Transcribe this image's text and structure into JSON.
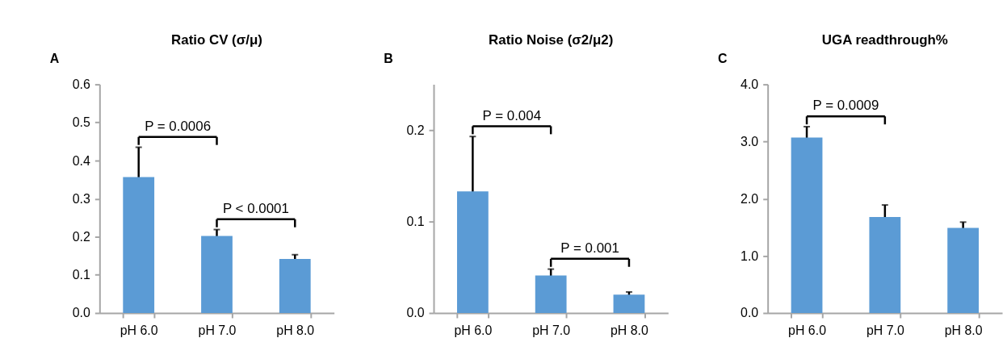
{
  "chart_data": [
    {
      "type": "bar",
      "title": "Ratio CV (σ/μ)",
      "categories": [
        "pH 6.0",
        "pH 7.0",
        "pH 8.0"
      ],
      "values": [
        0.357,
        0.202,
        0.142
      ],
      "errors": [
        0.078,
        0.017,
        0.011
      ],
      "color": "#5b9bd5",
      "ylim": [
        0,
        0.6
      ],
      "yticks": [
        {
          "value": 0,
          "label": "0.0"
        },
        0.1,
        0.2,
        0.3,
        0.4,
        0.5,
        0.6
      ],
      "grid": false,
      "annotations": [
        "A",
        "P = 0.0006",
        "P < 0.0001"
      ]
    },
    {
      "type": "bar",
      "title": "Ratio Noise (σ2/μ2)",
      "categories": [
        "pH 6.0",
        "pH 7.0",
        "pH 8.0"
      ],
      "values": [
        0.133,
        0.041,
        0.02
      ],
      "errors": [
        0.06,
        0.007,
        0.003
      ],
      "color": "#5b9bd5",
      "ylim": [
        0,
        0.25
      ],
      "yticks": [
        {
          "value": 0,
          "label": "0.0"
        },
        0.1,
        0.2
      ],
      "grid": false,
      "annotations": [
        "B",
        "P = 0.004",
        "P = 0.001"
      ]
    },
    {
      "type": "bar",
      "title": "UGA readthrough%",
      "categories": [
        "pH 6.0",
        "pH 7.0",
        "pH 8.0"
      ],
      "values": [
        3.07,
        1.68,
        1.49
      ],
      "errors": [
        0.19,
        0.21,
        0.1
      ],
      "color": "#5b9bd5",
      "ylim": [
        0,
        4.0
      ],
      "yticks": [
        {
          "value": 0,
          "label": "0.0"
        },
        {
          "value": 1,
          "label": "1.0"
        },
        {
          "value": 2,
          "label": "2.0"
        },
        {
          "value": 3,
          "label": "3.0"
        },
        {
          "value": 4,
          "label": "4.0"
        }
      ],
      "grid": false,
      "annotations": [
        "C",
        "P = 0.0009"
      ]
    }
  ]
}
